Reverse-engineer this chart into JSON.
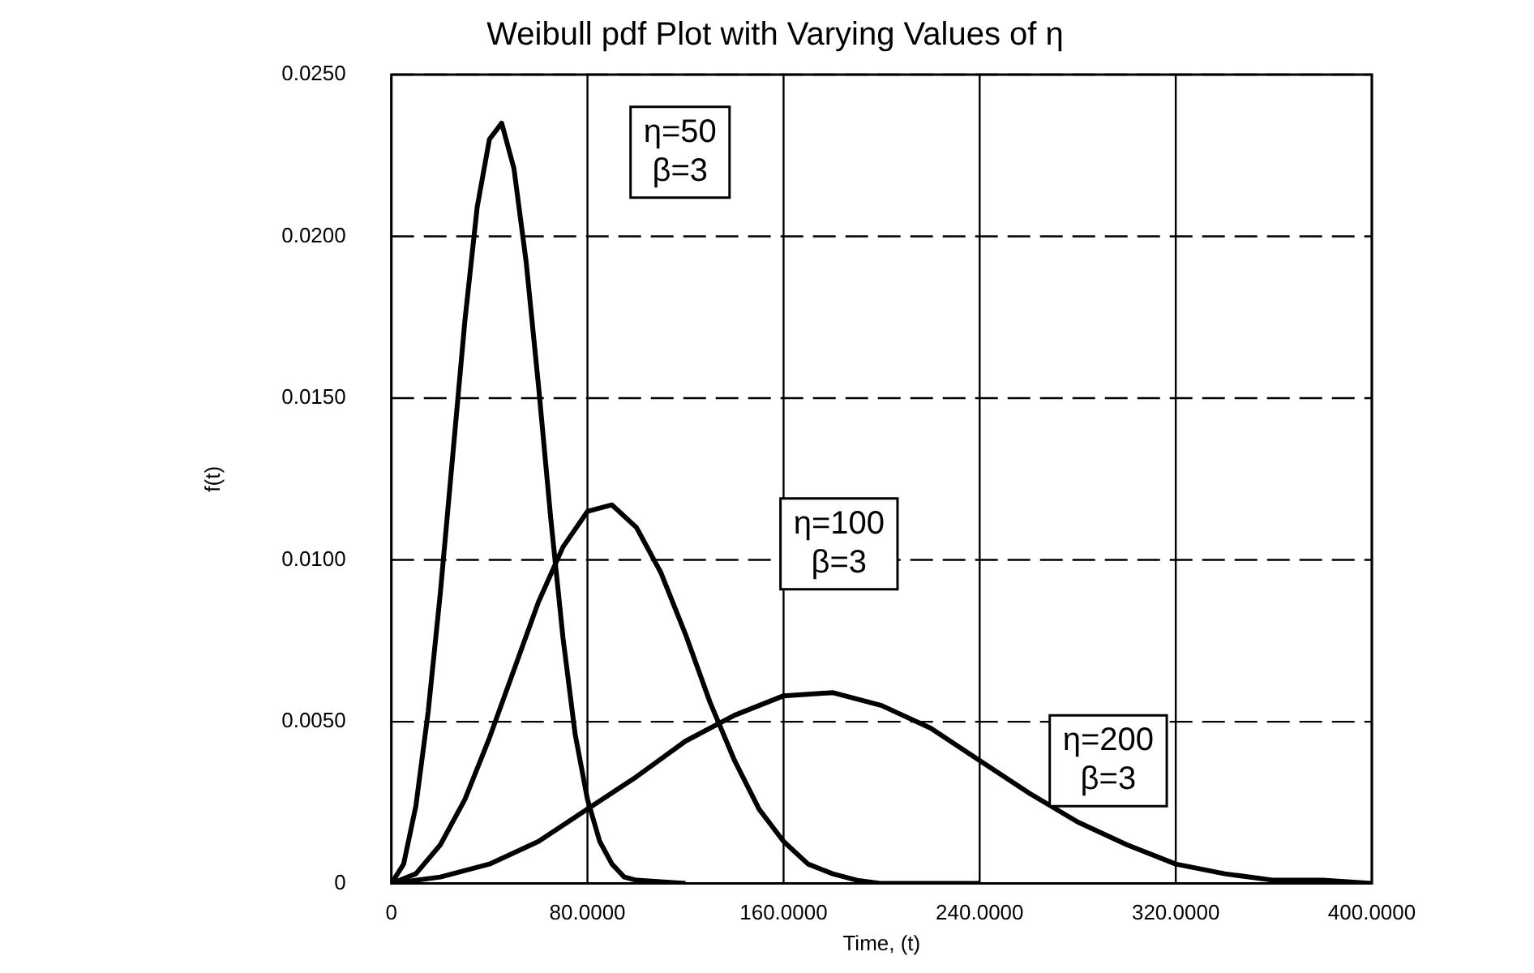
{
  "chart_data": {
    "type": "line",
    "title": "Weibull pdf Plot with Varying Values of η",
    "xlabel": "Time, (t)",
    "ylabel": "f(t)",
    "series": [
      {
        "color": "#000000",
        "x": [
          0,
          5,
          10,
          15,
          20,
          25,
          30,
          35,
          40,
          45,
          50,
          55,
          60,
          65,
          70,
          75,
          80,
          85,
          90,
          95,
          100,
          120
        ],
        "values": [
          0,
          0.0006,
          0.0024,
          0.0053,
          0.009,
          0.0132,
          0.0174,
          0.0209,
          0.023,
          0.0235,
          0.0221,
          0.0192,
          0.0154,
          0.0113,
          0.0076,
          0.0046,
          0.0026,
          0.0013,
          0.0006,
          0.0002,
          0.0001,
          0
        ]
      },
      {
        "color": "#000000",
        "x": [
          0,
          10,
          20,
          30,
          40,
          50,
          60,
          70,
          80,
          90,
          100,
          110,
          120,
          130,
          140,
          150,
          160,
          170,
          180,
          190,
          200,
          240
        ],
        "values": [
          0,
          0.0003,
          0.0012,
          0.0026,
          0.0045,
          0.0066,
          0.0087,
          0.0104,
          0.0115,
          0.0117,
          0.011,
          0.0096,
          0.0077,
          0.0056,
          0.0038,
          0.0023,
          0.0013,
          0.0006,
          0.0003,
          0.0001,
          0,
          0
        ]
      },
      {
        "color": "#000000",
        "x": [
          0,
          20,
          40,
          60,
          80,
          100,
          120,
          140,
          160,
          180,
          200,
          220,
          240,
          260,
          280,
          300,
          320,
          340,
          360,
          380,
          400
        ],
        "values": [
          0,
          0.0002,
          0.0006,
          0.0013,
          0.0023,
          0.0033,
          0.0044,
          0.0052,
          0.0058,
          0.0059,
          0.0055,
          0.0048,
          0.0038,
          0.0028,
          0.0019,
          0.0012,
          0.0006,
          0.0003,
          0.0001,
          0.0001,
          0
        ]
      }
    ],
    "xlim": [
      0,
      400
    ],
    "xticks": [
      0,
      {
        "value": 80,
        "label": "80.0000"
      },
      {
        "value": 160,
        "label": "160.0000"
      },
      {
        "value": 240,
        "label": "240.0000"
      },
      {
        "value": 320,
        "label": "320.0000"
      },
      {
        "value": 400,
        "label": "400.0000"
      }
    ],
    "ylim": [
      0,
      0.025
    ],
    "yticks": [
      0,
      {
        "value": 0.005,
        "label": "0.0050"
      },
      {
        "value": 0.01,
        "label": "0.0100"
      },
      {
        "value": 0.015,
        "label": "0.0150"
      },
      {
        "value": 0.02,
        "label": "0.0200"
      },
      {
        "value": 0.025,
        "label": "0.0250"
      }
    ],
    "grid": true,
    "legend": false,
    "marker": "none",
    "line_style": "solid",
    "annotations": [
      "η=50\nβ=3",
      "η=100\nβ=3",
      "η=200\nβ=3"
    ]
  }
}
